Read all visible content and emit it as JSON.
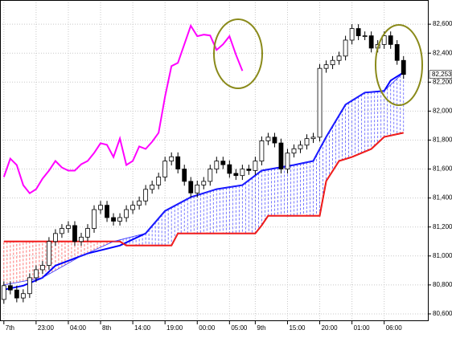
{
  "chart_data": {
    "type": "candlestick",
    "ylim": [
      80550,
      82767
    ],
    "yticks": [
      {
        "value": 80600,
        "label": "80,600"
      },
      {
        "value": 80800,
        "label": "80,800"
      },
      {
        "value": 81000,
        "label": "81,000"
      },
      {
        "value": 81200,
        "label": "81,200"
      },
      {
        "value": 81400,
        "label": "81,400"
      },
      {
        "value": 81600,
        "label": "81,600"
      },
      {
        "value": 81800,
        "label": "81,800"
      },
      {
        "value": 82000,
        "label": "82,000"
      },
      {
        "value": 82200,
        "label": "82,200"
      },
      {
        "value": 82400,
        "label": "82,400"
      },
      {
        "value": 82600,
        "label": "82,600"
      }
    ],
    "xlim": [
      -0.6,
      65.9
    ],
    "xticks": [
      {
        "value": 0,
        "label": "7th"
      },
      {
        "value": 5,
        "label": "23:00"
      },
      {
        "value": 10,
        "label": "04:00"
      },
      {
        "value": 15,
        "label": "8th"
      },
      {
        "value": 20,
        "label": "14:00"
      },
      {
        "value": 25,
        "label": "19:00"
      },
      {
        "value": 30,
        "label": "00:00"
      },
      {
        "value": 35,
        "label": "05:00"
      },
      {
        "value": 39,
        "label": "9th"
      },
      {
        "value": 44,
        "label": "15:00"
      },
      {
        "value": 49,
        "label": "20:00"
      },
      {
        "value": 54,
        "label": "01:00"
      },
      {
        "value": 59,
        "label": "06:00"
      }
    ],
    "grid": true,
    "last_price": {
      "value": 82253,
      "label": "82,253"
    },
    "open": [
      80700,
      80795,
      80765,
      80710,
      80740,
      80850,
      80905,
      80935,
      81100,
      81155,
      81190,
      81210,
      81100,
      81130,
      81190,
      81320,
      81350,
      81265,
      81240,
      81265,
      81320,
      81350,
      81380,
      81460,
      81490,
      81545,
      81655,
      81685,
      81600,
      81515,
      81435,
      81490,
      81515,
      81600,
      81655,
      81630,
      81570,
      81555,
      81600,
      81590,
      81655,
      81795,
      81820,
      81780,
      81600,
      81710,
      81740,
      81765,
      81810,
      81820,
      82295,
      82320,
      82350,
      82380,
      82490,
      82570,
      82520,
      82520,
      82435,
      82460,
      82520,
      82460,
      82350
    ],
    "high": [
      80825,
      80825,
      80795,
      80770,
      80880,
      80935,
      80965,
      81130,
      81185,
      81220,
      81240,
      81240,
      81160,
      81220,
      81350,
      81380,
      81380,
      81295,
      81295,
      81350,
      81380,
      81410,
      81490,
      81520,
      81575,
      81685,
      81715,
      81715,
      81630,
      81545,
      81520,
      81545,
      81630,
      81685,
      81685,
      81660,
      81600,
      81630,
      81630,
      81685,
      81825,
      81850,
      81850,
      81810,
      81740,
      81770,
      81795,
      81840,
      81850,
      82325,
      82350,
      82380,
      82410,
      82520,
      82600,
      82600,
      82550,
      82550,
      82490,
      82550,
      82550,
      82490,
      82380
    ],
    "low": [
      80670,
      80735,
      80680,
      80680,
      80710,
      80820,
      80875,
      80905,
      81070,
      81125,
      81160,
      81070,
      81070,
      81100,
      81160,
      81290,
      81235,
      81210,
      81210,
      81235,
      81290,
      81320,
      81350,
      81430,
      81460,
      81515,
      81625,
      81570,
      81485,
      81405,
      81405,
      81460,
      81485,
      81570,
      81600,
      81540,
      81525,
      81525,
      81560,
      81560,
      81625,
      81765,
      81750,
      81570,
      81570,
      81680,
      81710,
      81735,
      81780,
      81790,
      82265,
      82290,
      82320,
      82350,
      82460,
      82490,
      82490,
      82405,
      82405,
      82430,
      82430,
      82320,
      82223
    ],
    "close": [
      80795,
      80765,
      80710,
      80740,
      80850,
      80905,
      80935,
      81100,
      81155,
      81190,
      81210,
      81100,
      81130,
      81190,
      81320,
      81350,
      81265,
      81240,
      81265,
      81320,
      81350,
      81380,
      81460,
      81490,
      81545,
      81655,
      81685,
      81600,
      81515,
      81435,
      81490,
      81515,
      81600,
      81655,
      81630,
      81570,
      81555,
      81600,
      81590,
      81655,
      81795,
      81820,
      81780,
      81600,
      81710,
      81740,
      81765,
      81810,
      81820,
      82295,
      82320,
      82350,
      82380,
      82490,
      82570,
      82520,
      82520,
      82435,
      82460,
      82520,
      82460,
      82350,
      82253
    ],
    "series": [
      {
        "name": "Tenkan",
        "color": "#0000ff",
        "x": [
          0,
          3,
          6,
          8,
          13,
          18,
          22,
          25,
          29,
          33,
          37,
          40,
          45,
          48,
          50,
          53,
          56,
          59,
          60,
          62
        ],
        "values": [
          80767,
          80795,
          80850,
          80933,
          81017,
          81072,
          81156,
          81311,
          81406,
          81461,
          81489,
          81589,
          81628,
          81656,
          81822,
          82045,
          82128,
          82139,
          82211,
          82267
        ]
      },
      {
        "name": "Kijun",
        "color": "#e00000",
        "x": [
          0,
          18,
          19,
          26,
          27,
          39,
          40,
          41,
          49,
          50,
          52,
          54,
          57,
          59,
          62
        ],
        "values": [
          81100,
          81100,
          81072,
          81072,
          81156,
          81156,
          81211,
          81278,
          81278,
          81517,
          81656,
          81683,
          81739,
          81822,
          81850
        ]
      },
      {
        "name": "Chikou",
        "color": "#ff00ff",
        "x": [
          0,
          1,
          2,
          3,
          4,
          5,
          6,
          7,
          8,
          9,
          10,
          11,
          12,
          13,
          14,
          15,
          16,
          17,
          18,
          19,
          20,
          21,
          22,
          23,
          24,
          25,
          26,
          27,
          28,
          29,
          30,
          31,
          32,
          33,
          34,
          35,
          36,
          37
        ],
        "values": [
          81545,
          81672,
          81628,
          81489,
          81433,
          81461,
          81534,
          81589,
          81656,
          81611,
          81589,
          81589,
          81633,
          81656,
          81711,
          81778,
          81767,
          81683,
          81811,
          81628,
          81656,
          81756,
          81739,
          81789,
          81850,
          82100,
          82311,
          82333,
          82461,
          82589,
          82517,
          82528,
          82522,
          82422,
          82461,
          82517,
          82389,
          82278
        ]
      },
      {
        "name": "Senkou A",
        "color": "#3030ff",
        "x": [
          0,
          6,
          12,
          17,
          22,
          25,
          29,
          33,
          37,
          40,
          45,
          48,
          50,
          53,
          56,
          59,
          62
        ],
        "values": [
          80800,
          80850,
          81000,
          81100,
          81156,
          81311,
          81406,
          81461,
          81489,
          81589,
          81628,
          81656,
          81822,
          82045,
          82128,
          82139,
          82267
        ]
      },
      {
        "name": "Senkou B",
        "color": "#ff3030",
        "x": [
          0,
          18,
          19,
          26,
          27,
          39,
          40,
          41,
          49,
          50,
          52,
          54,
          57,
          59,
          62
        ],
        "values": [
          81100,
          81100,
          81072,
          81072,
          81156,
          81156,
          81211,
          81278,
          81278,
          81517,
          81656,
          81683,
          81739,
          81822,
          81850
        ]
      }
    ]
  }
}
